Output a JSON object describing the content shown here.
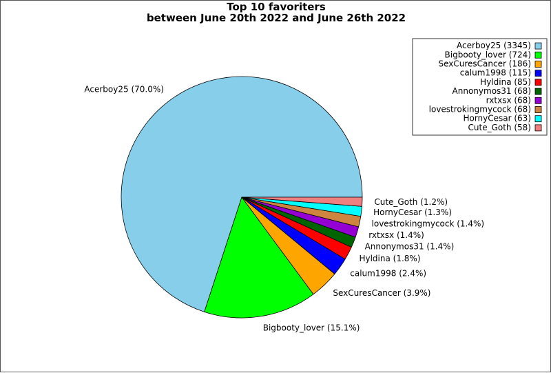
{
  "chart_data": {
    "type": "pie",
    "title": [
      "Top 10 favoriters",
      "between June 20th 2022 and June 26th 2022"
    ],
    "legend_position": "top-right",
    "slices": [
      {
        "name": "Acerboy25",
        "value": 3345,
        "percent_label": "70.0%",
        "color": "#87ceeb"
      },
      {
        "name": "Bigbooty_lover",
        "value": 724,
        "percent_label": "15.1%",
        "color": "#00ff00"
      },
      {
        "name": "SexCuresCancer",
        "value": 186,
        "percent_label": "3.9%",
        "color": "#ffa500"
      },
      {
        "name": "calum1998",
        "value": 115,
        "percent_label": "2.4%",
        "color": "#0000ff"
      },
      {
        "name": "Hyldina",
        "value": 85,
        "percent_label": "1.8%",
        "color": "#ff0000"
      },
      {
        "name": "Annonymos31",
        "value": 68,
        "percent_label": "1.4%",
        "color": "#006400"
      },
      {
        "name": "rxtxsx",
        "value": 68,
        "percent_label": "1.4%",
        "color": "#9400d3"
      },
      {
        "name": "lovestrokingmycock",
        "value": 68,
        "percent_label": "1.4%",
        "color": "#cd853f"
      },
      {
        "name": "HornyCesar",
        "value": 63,
        "percent_label": "1.3%",
        "color": "#00ffff"
      },
      {
        "name": "Cute_Goth",
        "value": 58,
        "percent_label": "1.2%",
        "color": "#f08080"
      }
    ]
  }
}
